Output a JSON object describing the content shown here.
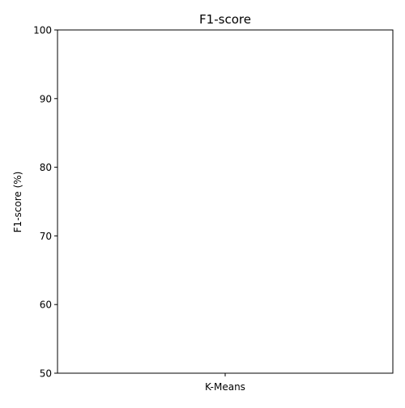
{
  "chart_data": {
    "type": "bar",
    "title": "F1-score",
    "xlabel": "",
    "ylabel": "F1-score (%)",
    "categories": [
      "K-Means"
    ],
    "series": [
      {
        "values": [
          null
        ]
      }
    ],
    "ylim": [
      50,
      100
    ],
    "yticks": [
      50,
      60,
      70,
      80,
      90,
      100
    ],
    "grid": false
  }
}
